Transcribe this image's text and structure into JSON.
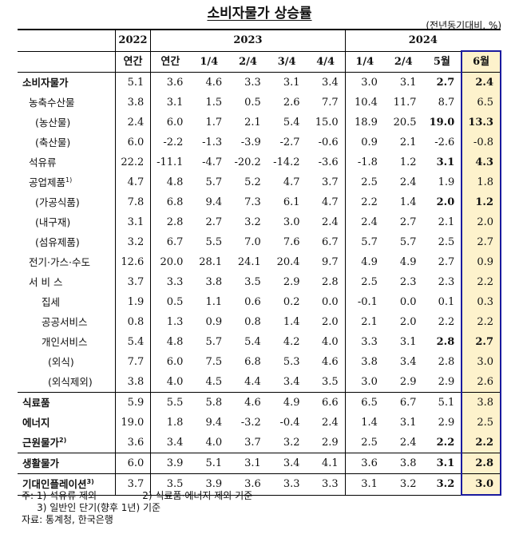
{
  "title": "소비자물가 상승률",
  "unit": "(전년동기대비, %)",
  "header": {
    "years": [
      {
        "label": "2022",
        "span": 1
      },
      {
        "label": "2023",
        "span": 5
      },
      {
        "label": "2024",
        "span": 4
      }
    ],
    "periods": [
      "연간",
      "연간",
      "1/4",
      "2/4",
      "3/4",
      "4/4",
      "1/4",
      "2/4",
      "5월",
      "6월"
    ]
  },
  "highlight": {
    "column_index": 9,
    "background": "#fdf2cc",
    "border": "#1a1a9e"
  },
  "rows": [
    {
      "label": "소비자물가",
      "indent": 0,
      "bold_label": true,
      "values": [
        "5.1",
        "3.6",
        "4.6",
        "3.3",
        "3.1",
        "3.4",
        "3.0",
        "3.1",
        "2.7",
        "2.4"
      ],
      "bold_cols": [
        8,
        9
      ]
    },
    {
      "label": "농축수산물",
      "indent": 1,
      "values": [
        "3.8",
        "3.1",
        "1.5",
        "0.5",
        "2.6",
        "7.7",
        "10.4",
        "11.7",
        "8.7",
        "6.5"
      ],
      "bold_cols": []
    },
    {
      "label": "(농산물)",
      "indent": 2,
      "values": [
        "2.4",
        "6.0",
        "1.7",
        "2.1",
        "5.4",
        "15.0",
        "18.9",
        "20.5",
        "19.0",
        "13.3"
      ],
      "bold_cols": [
        8,
        9
      ]
    },
    {
      "label": "(축산물)",
      "indent": 2,
      "values": [
        "6.0",
        "-2.2",
        "-1.3",
        "-3.9",
        "-2.7",
        "-0.6",
        "0.9",
        "2.1",
        "-2.6",
        "-0.8"
      ],
      "bold_cols": []
    },
    {
      "label": "석유류",
      "indent": 1,
      "values": [
        "22.2",
        "-11.1",
        "-4.7",
        "-20.2",
        "-14.2",
        "-3.6",
        "-1.8",
        "1.2",
        "3.1",
        "4.3"
      ],
      "bold_cols": [
        8,
        9
      ]
    },
    {
      "label": "공업제품",
      "sup": "1)",
      "indent": 1,
      "values": [
        "4.7",
        "4.8",
        "5.7",
        "5.2",
        "4.7",
        "3.7",
        "2.5",
        "2.4",
        "1.9",
        "1.8"
      ],
      "bold_cols": []
    },
    {
      "label": "(가공식품)",
      "indent": 2,
      "values": [
        "7.8",
        "6.8",
        "9.4",
        "7.3",
        "6.1",
        "4.7",
        "2.2",
        "1.4",
        "2.0",
        "1.2"
      ],
      "bold_cols": [
        8,
        9
      ]
    },
    {
      "label": "(내구재)",
      "indent": 2,
      "values": [
        "3.1",
        "2.8",
        "2.7",
        "3.2",
        "3.0",
        "2.4",
        "2.4",
        "2.7",
        "2.1",
        "2.0"
      ],
      "bold_cols": []
    },
    {
      "label": "(섬유제품)",
      "indent": 2,
      "values": [
        "3.2",
        "6.7",
        "5.5",
        "7.0",
        "7.6",
        "6.7",
        "5.7",
        "5.7",
        "2.5",
        "2.7"
      ],
      "bold_cols": []
    },
    {
      "label": "전기·가스·수도",
      "indent": 1,
      "values": [
        "12.6",
        "20.0",
        "28.1",
        "24.1",
        "20.4",
        "9.7",
        "4.9",
        "4.9",
        "2.7",
        "0.9"
      ],
      "bold_cols": []
    },
    {
      "label": "서 비 스",
      "indent": 1,
      "values": [
        "3.7",
        "3.3",
        "3.8",
        "3.5",
        "2.9",
        "2.8",
        "2.5",
        "2.3",
        "2.3",
        "2.2"
      ],
      "bold_cols": []
    },
    {
      "label": "집세",
      "indent": 3,
      "values": [
        "1.9",
        "0.5",
        "1.1",
        "0.6",
        "0.2",
        "0.0",
        "-0.1",
        "0.0",
        "0.1",
        "0.3"
      ],
      "bold_cols": []
    },
    {
      "label": "공공서비스",
      "indent": 3,
      "values": [
        "0.8",
        "1.3",
        "0.9",
        "0.8",
        "1.4",
        "2.0",
        "2.1",
        "2.0",
        "2.2",
        "2.2"
      ],
      "bold_cols": []
    },
    {
      "label": "개인서비스",
      "indent": 3,
      "values": [
        "5.4",
        "4.8",
        "5.7",
        "5.4",
        "4.2",
        "4.0",
        "3.3",
        "3.1",
        "2.8",
        "2.7"
      ],
      "bold_cols": [
        8,
        9
      ]
    },
    {
      "label": "(외식)",
      "indent": 4,
      "values": [
        "7.7",
        "6.0",
        "7.5",
        "6.8",
        "5.3",
        "4.6",
        "3.8",
        "3.4",
        "2.8",
        "3.0"
      ],
      "bold_cols": []
    },
    {
      "label": "(외식제외)",
      "indent": 4,
      "values": [
        "3.8",
        "4.0",
        "4.5",
        "4.4",
        "3.4",
        "3.5",
        "3.0",
        "2.9",
        "2.9",
        "2.6"
      ],
      "bold_cols": []
    },
    {
      "label": "식료품",
      "indent": 0,
      "bold_label": true,
      "group_start": true,
      "values": [
        "5.9",
        "5.5",
        "5.8",
        "4.6",
        "4.9",
        "6.6",
        "6.5",
        "6.7",
        "5.1",
        "3.8"
      ],
      "bold_cols": []
    },
    {
      "label": "에너지",
      "indent": 0,
      "bold_label": true,
      "values": [
        "19.0",
        "1.8",
        "9.4",
        "-3.2",
        "-0.4",
        "2.4",
        "1.4",
        "3.1",
        "2.9",
        "2.5"
      ],
      "bold_cols": []
    },
    {
      "label": "근원물가",
      "sup": "2)",
      "indent": 0,
      "bold_label": true,
      "values": [
        "3.6",
        "3.4",
        "4.0",
        "3.7",
        "3.2",
        "2.9",
        "2.5",
        "2.4",
        "2.2",
        "2.2"
      ],
      "bold_cols": [
        8,
        9
      ]
    },
    {
      "label": "생활물가",
      "indent": 0,
      "bold_label": true,
      "group_start": true,
      "values": [
        "6.0",
        "3.9",
        "5.1",
        "3.1",
        "3.4",
        "4.1",
        "3.6",
        "3.8",
        "3.1",
        "2.8"
      ],
      "bold_cols": [
        8,
        9
      ]
    },
    {
      "label": "기대인플레이션",
      "sup": "3)",
      "indent": 0,
      "bold_label": true,
      "group_start": true,
      "values": [
        "3.7",
        "3.5",
        "3.9",
        "3.6",
        "3.3",
        "3.3",
        "3.1",
        "3.2",
        "3.2",
        "3.0"
      ],
      "bold_cols": [
        8,
        9
      ]
    }
  ],
  "notes": {
    "line1": "주: 1) 석유류 제외               2) 식료품·에너지 제외 기준",
    "line2": "     3) 일반인 단기(향후 1년) 기준",
    "source": "자료: 통계청, 한국은행"
  }
}
